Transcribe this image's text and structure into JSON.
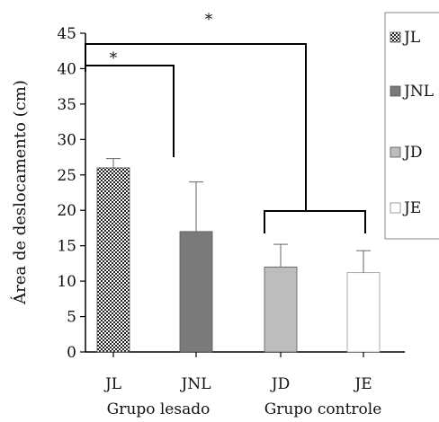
{
  "chart_data": {
    "type": "bar",
    "ylabel": "Área de deslocamento (cm)",
    "ylim": [
      0,
      45
    ],
    "yticks": [
      0,
      5,
      10,
      15,
      20,
      25,
      30,
      35,
      40,
      45
    ],
    "categories": [
      "JL",
      "JNL",
      "JD",
      "JE"
    ],
    "values": [
      26,
      17,
      12,
      11.2
    ],
    "errors": [
      1.3,
      7,
      3.2,
      3.1
    ],
    "colors": [
      "#222222",
      "#7a7a7a",
      "#bdbdbd",
      "#ffffff"
    ],
    "patterns": [
      "checker",
      "solid",
      "solid",
      "solid"
    ],
    "groups": [
      {
        "label": "Grupo lesado",
        "categories": [
          "JL",
          "JNL"
        ]
      },
      {
        "label": "Grupo controle",
        "categories": [
          "JD",
          "JE"
        ]
      }
    ],
    "legend": {
      "position": "right",
      "entries": [
        "JL",
        "JNL",
        "JD",
        "JE"
      ]
    },
    "annotations": [
      {
        "text": "*",
        "between": [
          "JL",
          "JNL"
        ]
      },
      {
        "text": "*",
        "between": [
          "JL",
          "Grupo controle"
        ]
      }
    ],
    "grid": false
  }
}
